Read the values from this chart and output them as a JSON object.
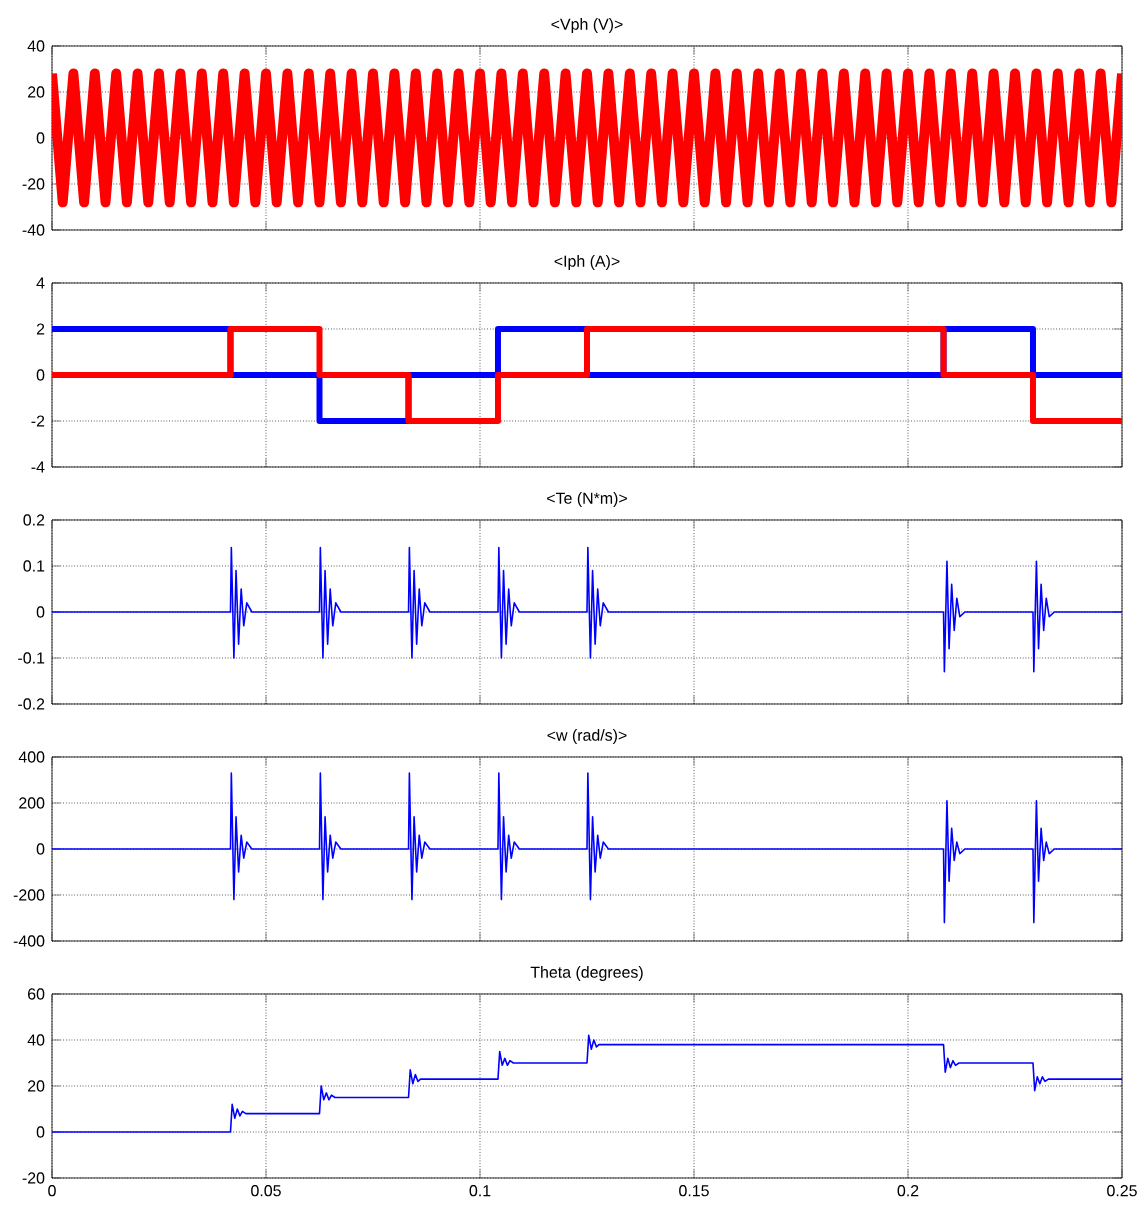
{
  "chart_data": [
    {
      "type": "line",
      "title": "<Vph (V)>",
      "xlim": [
        0,
        0.25
      ],
      "xticks": [
        0,
        0.05,
        0.1,
        0.15,
        0.2,
        0.25
      ],
      "ylim": [
        -40,
        40
      ],
      "yticks": [
        -40,
        -20,
        0,
        20,
        40
      ],
      "grid": true,
      "tick_labels": "y",
      "series": [
        {
          "color": "#ff0000",
          "x": [
            0,
            0.0025,
            0.005,
            0.0075,
            0.01,
            0.0125,
            0.015,
            0.0175,
            0.02,
            0.0225,
            0.025,
            0.0275,
            0.03,
            0.0325,
            0.035,
            0.0375,
            0.04,
            0.0425,
            0.045,
            0.0475,
            0.05,
            0.0525,
            0.055,
            0.0575,
            0.06,
            0.0625,
            0.065,
            0.0675,
            0.07,
            0.0725,
            0.075,
            0.0775,
            0.08,
            0.0825,
            0.085,
            0.0875,
            0.09,
            0.0925,
            0.095,
            0.0975,
            0.1,
            0.1025,
            0.105,
            0.1075,
            0.11,
            0.1125,
            0.115,
            0.1175,
            0.12,
            0.1225,
            0.125,
            0.1275,
            0.13,
            0.1325,
            0.135,
            0.1375,
            0.14,
            0.1425,
            0.145,
            0.1475,
            0.15,
            0.1525,
            0.155,
            0.1575,
            0.16,
            0.1625,
            0.165,
            0.1675,
            0.17,
            0.1725,
            0.175,
            0.1775,
            0.18,
            0.1825,
            0.185,
            0.1875,
            0.19,
            0.1925,
            0.195,
            0.1975,
            0.2,
            0.2025,
            0.205,
            0.2075,
            0.21,
            0.2125,
            0.215,
            0.2175,
            0.22,
            0.2225,
            0.225,
            0.2275,
            0.23,
            0.2325,
            0.235,
            0.2375,
            0.24,
            0.2425,
            0.245,
            0.2475,
            0.25
          ],
          "values": [
            28,
            -28,
            28,
            -28,
            28,
            -28,
            28,
            -28,
            28,
            -28,
            28,
            -28,
            28,
            -28,
            28,
            -28,
            28,
            -28,
            28,
            -28,
            28,
            -28,
            28,
            -28,
            28,
            -28,
            28,
            -28,
            28,
            -28,
            28,
            -28,
            28,
            -28,
            28,
            -28,
            28,
            -28,
            28,
            -28,
            28,
            -28,
            28,
            -28,
            28,
            -28,
            28,
            -28,
            28,
            -28,
            28,
            -28,
            28,
            -28,
            28,
            -28,
            28,
            -28,
            28,
            -28,
            28,
            -28,
            28,
            -28,
            28,
            -28,
            28,
            -28,
            28,
            -28,
            28,
            -28,
            28,
            -28,
            28,
            -28,
            28,
            -28,
            28,
            -28,
            28,
            -28,
            28,
            -28,
            28,
            -28,
            28,
            -28,
            28,
            -28,
            28,
            -28,
            28,
            -28,
            28,
            -28,
            28,
            -28,
            28,
            -28,
            28
          ]
        }
      ]
    },
    {
      "type": "step",
      "title": "<Iph (A)>",
      "xlim": [
        0,
        0.25
      ],
      "xticks": [
        0,
        0.05,
        0.1,
        0.15,
        0.2,
        0.25
      ],
      "ylim": [
        -4,
        4
      ],
      "yticks": [
        -4,
        -2,
        0,
        2,
        4
      ],
      "grid": true,
      "tick_labels": "y",
      "x": [
        0,
        0.0417,
        0.0625,
        0.0833,
        0.1042,
        0.125,
        0.2083,
        0.2292,
        0.25
      ],
      "series": [
        {
          "color": "#0000ff",
          "values": [
            2,
            0,
            -2,
            0,
            2,
            0,
            2,
            0,
            0
          ]
        },
        {
          "color": "#ff0000",
          "values": [
            0,
            2,
            0,
            -2,
            0,
            2,
            0,
            -2,
            -2
          ]
        }
      ]
    },
    {
      "type": "line",
      "title": "<Te (N*m)>",
      "xlim": [
        0,
        0.25
      ],
      "xticks": [
        0,
        0.05,
        0.1,
        0.15,
        0.2,
        0.25
      ],
      "ylim": [
        -0.2,
        0.2
      ],
      "yticks": [
        -0.2,
        -0.1,
        0,
        0.1,
        0.2
      ],
      "grid": true,
      "tick_labels": "y",
      "x": [
        0,
        0.0417,
        0.0419,
        0.0425,
        0.043,
        0.0436,
        0.0442,
        0.0448,
        0.0455,
        0.0467,
        0.0625,
        0.0627,
        0.0633,
        0.0638,
        0.0644,
        0.065,
        0.0656,
        0.0663,
        0.0675,
        0.0833,
        0.0835,
        0.0841,
        0.0846,
        0.0852,
        0.0858,
        0.0864,
        0.0871,
        0.0883,
        0.1042,
        0.1044,
        0.105,
        0.1055,
        0.1061,
        0.1067,
        0.1073,
        0.108,
        0.1092,
        0.125,
        0.1252,
        0.1258,
        0.1263,
        0.1269,
        0.1275,
        0.1281,
        0.1288,
        0.13,
        0.2083,
        0.2085,
        0.2091,
        0.2096,
        0.2102,
        0.2108,
        0.2114,
        0.2121,
        0.2133,
        0.2292,
        0.2294,
        0.23,
        0.2305,
        0.2311,
        0.2317,
        0.2323,
        0.233,
        0.2342,
        0.25
      ],
      "series": [
        {
          "color": "#0000ff",
          "values": [
            0,
            0,
            0.14,
            -0.1,
            0.09,
            -0.07,
            0.05,
            -0.03,
            0.02,
            0,
            0,
            0.14,
            -0.1,
            0.09,
            -0.07,
            0.05,
            -0.03,
            0.02,
            0,
            0,
            0.14,
            -0.1,
            0.09,
            -0.07,
            0.05,
            -0.03,
            0.02,
            0,
            0,
            0.14,
            -0.1,
            0.09,
            -0.07,
            0.05,
            -0.03,
            0.02,
            0,
            0,
            0.14,
            -0.1,
            0.09,
            -0.07,
            0.05,
            -0.03,
            0.02,
            0,
            0,
            -0.13,
            0.11,
            -0.08,
            0.06,
            -0.04,
            0.03,
            -0.01,
            0,
            0,
            -0.13,
            0.11,
            -0.08,
            0.06,
            -0.04,
            0.03,
            -0.01,
            0,
            0
          ]
        }
      ]
    },
    {
      "type": "line",
      "title": "<w (rad/s)>",
      "xlim": [
        0,
        0.25
      ],
      "xticks": [
        0,
        0.05,
        0.1,
        0.15,
        0.2,
        0.25
      ],
      "ylim": [
        -400,
        400
      ],
      "yticks": [
        -400,
        -200,
        0,
        200,
        400
      ],
      "grid": true,
      "tick_labels": "y",
      "x": [
        0,
        0.0417,
        0.0419,
        0.0425,
        0.043,
        0.0436,
        0.0442,
        0.0448,
        0.0455,
        0.0467,
        0.0625,
        0.0627,
        0.0633,
        0.0638,
        0.0644,
        0.065,
        0.0656,
        0.0663,
        0.0675,
        0.0833,
        0.0835,
        0.0841,
        0.0846,
        0.0852,
        0.0858,
        0.0864,
        0.0871,
        0.0883,
        0.1042,
        0.1044,
        0.105,
        0.1055,
        0.1061,
        0.1067,
        0.1073,
        0.108,
        0.1092,
        0.125,
        0.1252,
        0.1258,
        0.1263,
        0.1269,
        0.1275,
        0.1281,
        0.1288,
        0.13,
        0.2083,
        0.2085,
        0.2091,
        0.2096,
        0.2102,
        0.2108,
        0.2114,
        0.2121,
        0.2133,
        0.2292,
        0.2294,
        0.23,
        0.2305,
        0.2311,
        0.2317,
        0.2323,
        0.233,
        0.2342,
        0.25
      ],
      "series": [
        {
          "color": "#0000ff",
          "values": [
            0,
            0,
            330,
            -220,
            140,
            -100,
            60,
            -40,
            30,
            0,
            0,
            330,
            -220,
            140,
            -100,
            60,
            -40,
            30,
            0,
            0,
            330,
            -220,
            140,
            -100,
            60,
            -40,
            30,
            0,
            0,
            330,
            -220,
            140,
            -100,
            60,
            -40,
            30,
            0,
            0,
            330,
            -220,
            140,
            -100,
            60,
            -40,
            30,
            0,
            0,
            -320,
            210,
            -140,
            90,
            -50,
            30,
            -20,
            0,
            0,
            -320,
            210,
            -140,
            90,
            -50,
            30,
            -20,
            0,
            0
          ]
        }
      ]
    },
    {
      "type": "line",
      "title": "Theta (degrees)",
      "xlim": [
        0,
        0.25
      ],
      "xticks": [
        0,
        0.05,
        0.1,
        0.15,
        0.2,
        0.25
      ],
      "ylim": [
        -20,
        60
      ],
      "yticks": [
        -20,
        0,
        20,
        40,
        60
      ],
      "grid": true,
      "x": [
        0,
        0.0417,
        0.0421,
        0.0427,
        0.0433,
        0.0439,
        0.0445,
        0.0453,
        0.0625,
        0.0629,
        0.0635,
        0.0641,
        0.0647,
        0.0653,
        0.0661,
        0.0833,
        0.0837,
        0.0843,
        0.0849,
        0.0855,
        0.0861,
        0.0869,
        0.1042,
        0.1046,
        0.1052,
        0.1058,
        0.1064,
        0.107,
        0.1078,
        0.125,
        0.1254,
        0.126,
        0.1266,
        0.1272,
        0.1278,
        0.1286,
        0.2083,
        0.2087,
        0.2093,
        0.2099,
        0.2105,
        0.2111,
        0.2119,
        0.2292,
        0.2296,
        0.2302,
        0.2308,
        0.2314,
        0.232,
        0.2328,
        0.25
      ],
      "series": [
        {
          "color": "#0000ff",
          "values": [
            0,
            0,
            12,
            6,
            10,
            7,
            9,
            8,
            8,
            20,
            14,
            17,
            14,
            16,
            15,
            15,
            27,
            21,
            25,
            22,
            23,
            23,
            23,
            35,
            29,
            32,
            29,
            31,
            30,
            30,
            42,
            36,
            40,
            37,
            38,
            38,
            38,
            26,
            32,
            28,
            31,
            29,
            30,
            30,
            18,
            24,
            21,
            24,
            22,
            23,
            23
          ]
        }
      ]
    }
  ]
}
